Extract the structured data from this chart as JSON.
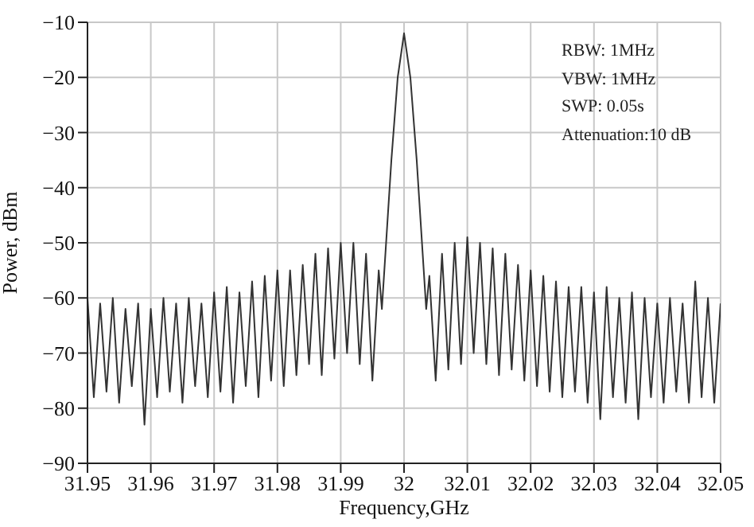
{
  "chart_data": {
    "type": "line",
    "xlabel": "Frequency,GHz",
    "ylabel": "Power, dBm",
    "annotations": [
      "RBW: 1MHz",
      "VBW: 1MHz",
      "SWP: 0.05s",
      "Attenuation:10 dB"
    ],
    "xlim": [
      31.95,
      32.05
    ],
    "xticks": [
      31.95,
      31.96,
      31.97,
      31.98,
      31.99,
      32,
      32.01,
      32.02,
      32.03,
      32.04,
      32.05
    ],
    "ylim": [
      -90,
      -10
    ],
    "yticks": [
      -90,
      -80,
      -70,
      -60,
      -50,
      -40,
      -30,
      -20,
      -10
    ],
    "grid": true,
    "marker": "none",
    "line_style": "solid",
    "series": [
      {
        "color": "#333333",
        "x": [
          31.95,
          31.951,
          31.952,
          31.953,
          31.954,
          31.955,
          31.956,
          31.957,
          31.958,
          31.959,
          31.96,
          31.961,
          31.962,
          31.963,
          31.964,
          31.965,
          31.966,
          31.967,
          31.968,
          31.969,
          31.97,
          31.971,
          31.972,
          31.973,
          31.974,
          31.975,
          31.976,
          31.977,
          31.978,
          31.979,
          31.98,
          31.981,
          31.982,
          31.983,
          31.984,
          31.985,
          31.986,
          31.987,
          31.988,
          31.989,
          31.99,
          31.991,
          31.992,
          31.993,
          31.994,
          31.995,
          31.996,
          31.9965,
          31.998,
          31.999,
          32,
          32.001,
          32.002,
          32.0035,
          32.004,
          32.005,
          32.006,
          32.007,
          32.008,
          32.009,
          32.01,
          32.011,
          32.012,
          32.013,
          32.014,
          32.015,
          32.016,
          32.017,
          32.018,
          32.019,
          32.02,
          32.021,
          32.022,
          32.023,
          32.024,
          32.025,
          32.026,
          32.027,
          32.028,
          32.029,
          32.03,
          32.031,
          32.032,
          32.033,
          32.034,
          32.035,
          32.036,
          32.037,
          32.038,
          32.039,
          32.04,
          32.041,
          32.042,
          32.043,
          32.044,
          32.045,
          32.046,
          32.047,
          32.048,
          32.049,
          32.05
        ],
        "values": [
          -60,
          -78,
          -61,
          -77,
          -60,
          -79,
          -62,
          -76,
          -61,
          -83,
          -62,
          -78,
          -60,
          -77,
          -61,
          -79,
          -60,
          -76,
          -61,
          -78,
          -59,
          -77,
          -58,
          -79,
          -59,
          -76,
          -57,
          -78,
          -56,
          -75,
          -55,
          -76,
          -55,
          -74,
          -54,
          -72,
          -52,
          -74,
          -51,
          -71,
          -50,
          -70,
          -50,
          -72,
          -52,
          -75,
          -55,
          -62,
          -35,
          -20,
          -12,
          -20,
          -35,
          -62,
          -56,
          -75,
          -52,
          -73,
          -50,
          -72,
          -49,
          -70,
          -50,
          -72,
          -51,
          -74,
          -52,
          -73,
          -54,
          -75,
          -55,
          -76,
          -56,
          -77,
          -57,
          -78,
          -58,
          -77,
          -58,
          -79,
          -59,
          -82,
          -58,
          -78,
          -60,
          -79,
          -59,
          -82,
          -60,
          -78,
          -61,
          -79,
          -60,
          -77,
          -61,
          -79,
          -57,
          -78,
          -60,
          -79,
          -61
        ]
      }
    ]
  }
}
